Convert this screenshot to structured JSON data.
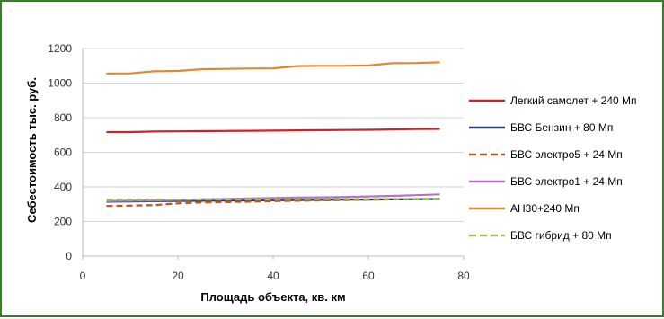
{
  "chart_data": {
    "type": "line",
    "title": "",
    "xlabel": "Площадь объекта, кв. км",
    "ylabel": "Себестоимость тыс. руб.",
    "xlim": [
      0,
      80
    ],
    "ylim": [
      0,
      1200
    ],
    "xticks": [
      "0",
      "20",
      "40",
      "60",
      "80"
    ],
    "yticks": [
      "0",
      "200",
      "400",
      "600",
      "800",
      "1000",
      "1200"
    ],
    "grid": "horizontal",
    "legend_position": "right",
    "series": [
      {
        "name": "Легкий самолет + 240 Мп",
        "color": "#d0202a",
        "dash": "solid",
        "x": [
          5,
          10,
          15,
          20,
          25,
          30,
          35,
          40,
          45,
          50,
          55,
          60,
          65,
          70,
          75
        ],
        "y": [
          717,
          717,
          720,
          721,
          722,
          723,
          724,
          725,
          727,
          728,
          729,
          730,
          732,
          734,
          735
        ]
      },
      {
        "name": "БВС Бензин + 80 Мп",
        "color": "#243e7a",
        "dash": "solid",
        "x": [
          5,
          10,
          15,
          20,
          25,
          30,
          35,
          40,
          45,
          50,
          55,
          60,
          65,
          70,
          75
        ],
        "y": [
          315,
          316,
          318,
          319,
          320,
          321,
          322,
          323,
          324,
          325,
          326,
          327,
          328,
          329,
          330
        ]
      },
      {
        "name": "БВС электро5  + 24 Мп",
        "color": "#c8501a",
        "dash": "dashed",
        "x": [
          5,
          10,
          15,
          20,
          25,
          30,
          35,
          40,
          45,
          50,
          55,
          60,
          65,
          70,
          75
        ],
        "y": [
          290,
          292,
          295,
          305,
          310,
          312,
          315,
          318,
          320,
          322,
          324,
          326,
          328,
          330,
          332
        ]
      },
      {
        "name": "БВС электро1 + 24 Мп",
        "color": "#b870d0",
        "dash": "solid",
        "x": [
          5,
          10,
          15,
          20,
          25,
          30,
          35,
          40,
          45,
          50,
          55,
          60,
          65,
          70,
          75
        ],
        "y": [
          318,
          320,
          322,
          325,
          328,
          330,
          333,
          336,
          338,
          340,
          342,
          345,
          348,
          352,
          357
        ]
      },
      {
        "name": "АН30+240 Мп",
        "color": "#e08a30",
        "dash": "solid",
        "x": [
          5,
          10,
          15,
          20,
          25,
          30,
          35,
          40,
          45,
          50,
          55,
          60,
          65,
          70,
          75
        ],
        "y": [
          1055,
          1056,
          1068,
          1070,
          1080,
          1082,
          1084,
          1085,
          1098,
          1100,
          1100,
          1102,
          1115,
          1116,
          1120
        ]
      },
      {
        "name": "БВС гибрид + 80 Мп",
        "color": "#9ac850",
        "dash": "dashed",
        "x": [
          5,
          10,
          15,
          20,
          25,
          30,
          35,
          40,
          45,
          50,
          55,
          60,
          65,
          70,
          75
        ],
        "y": [
          325,
          325,
          326,
          326,
          327,
          327,
          328,
          328,
          329,
          329,
          330,
          330,
          331,
          331,
          332
        ]
      }
    ]
  }
}
